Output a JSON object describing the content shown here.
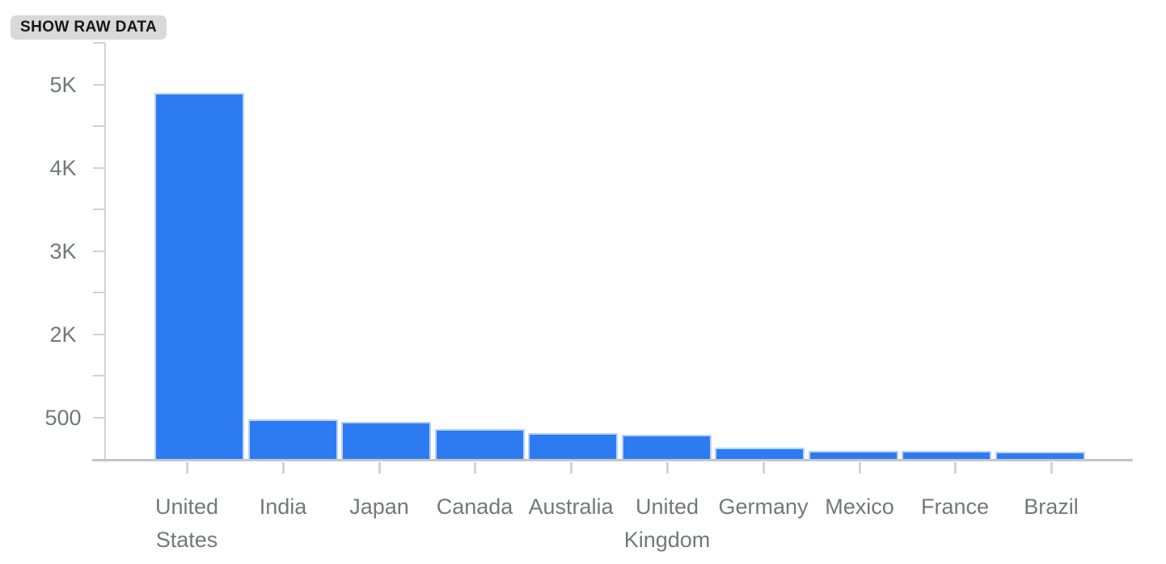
{
  "toolbar": {
    "show_raw_data_label": "SHOW RAW DATA"
  },
  "chart_data": {
    "type": "bar",
    "title": "",
    "xlabel": "",
    "ylabel": "",
    "categories": [
      "United States",
      "India",
      "Japan",
      "Canada",
      "Australia",
      "United Kingdom",
      "Germany",
      "Mexico",
      "France",
      "Brazil"
    ],
    "category_lines": [
      [
        "United",
        "States"
      ],
      [
        "India"
      ],
      [
        "Japan"
      ],
      [
        "Canada"
      ],
      [
        "Australia"
      ],
      [
        "United",
        "Kingdom"
      ],
      [
        "Germany"
      ],
      [
        "Mexico"
      ],
      [
        "France"
      ],
      [
        "Brazil"
      ]
    ],
    "values": [
      4900,
      480,
      450,
      360,
      310,
      290,
      140,
      100,
      95,
      90
    ],
    "y_axis": {
      "tick_labels": [
        "5K",
        "4K",
        "3K",
        "2K",
        "500"
      ],
      "tick_label_values": [
        5000,
        4000,
        3000,
        2000,
        500
      ],
      "minor_ticks_between_labels": true,
      "scale_anchors_value_to_tick": [
        [
          0,
          0
        ],
        [
          500,
          1
        ],
        [
          2000,
          3
        ],
        [
          3000,
          5
        ],
        [
          4000,
          7
        ],
        [
          5000,
          9
        ]
      ]
    },
    "grid": false,
    "legend": false,
    "bar_color": "#2d7bf1",
    "bar_rim_color": "#b9d2fa",
    "axis_color": "#d2d2d2",
    "label_color": "#74777c"
  }
}
